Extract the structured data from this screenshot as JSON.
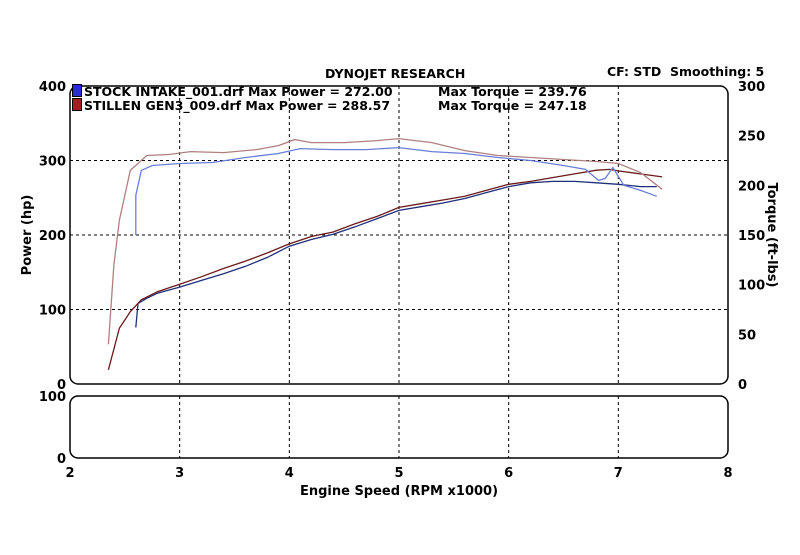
{
  "header": {
    "title": "DYNOJET RESEARCH",
    "settings": "CF: STD  Smoothing: 5"
  },
  "legend": [
    {
      "file": "STOCK INTAKE_001.drf",
      "max_power": "Max Power = 272.00",
      "max_torque": "Max Torque = 239.76",
      "color": "#2b2bd6"
    },
    {
      "file": "STILLEN GEN3_009.drf",
      "max_power": "Max Power = 288.57",
      "max_torque": "Max Torque = 247.18",
      "color": "#8b1a1a"
    }
  ],
  "chart_data": [
    {
      "type": "line",
      "xlabel": "Engine Speed (RPM x1000)",
      "ylabel": "Power (hp)",
      "y2label": "Torque (ft-lbs)",
      "xlim": [
        2,
        8
      ],
      "ylim": [
        0,
        400
      ],
      "y2lim": [
        0,
        300
      ],
      "xticks": [
        "2",
        "3",
        "4",
        "5",
        "6",
        "7",
        "8"
      ],
      "yticks": [
        "0",
        "100",
        "200",
        "300",
        "400"
      ],
      "y2ticks": [
        "0",
        "50",
        "100",
        "150",
        "200",
        "250",
        "300"
      ],
      "grid": true,
      "series": [
        {
          "name": "STOCK INTAKE_001.drf",
          "measure": "Power (hp)",
          "axis": "left",
          "color": "#1f2f7a",
          "x": [
            2.6,
            2.62,
            2.7,
            2.8,
            3.0,
            3.2,
            3.4,
            3.6,
            3.8,
            4.0,
            4.2,
            4.4,
            4.6,
            4.8,
            5.0,
            5.2,
            5.4,
            5.6,
            5.8,
            6.0,
            6.2,
            6.4,
            6.6,
            6.8,
            7.0,
            7.2,
            7.35
          ],
          "y": [
            76,
            108,
            115,
            122,
            130,
            139,
            148,
            158,
            170,
            185,
            194,
            201,
            211,
            222,
            233,
            238,
            243,
            249,
            257,
            265,
            270,
            272,
            272,
            270,
            268,
            265,
            265
          ]
        },
        {
          "name": "STILLEN GEN3_009.drf",
          "measure": "Power (hp)",
          "axis": "left",
          "color": "#6b1a1a",
          "x": [
            2.35,
            2.45,
            2.55,
            2.65,
            2.8,
            3.0,
            3.2,
            3.4,
            3.6,
            3.8,
            4.0,
            4.2,
            4.4,
            4.6,
            4.8,
            5.0,
            5.2,
            5.4,
            5.6,
            5.8,
            6.0,
            6.2,
            6.4,
            6.6,
            6.8,
            6.92,
            7.0,
            7.2,
            7.4
          ],
          "y": [
            19,
            75,
            97,
            113,
            124,
            134,
            144,
            155,
            165,
            176,
            188,
            198,
            204,
            215,
            225,
            237,
            242,
            247,
            252,
            260,
            268,
            272,
            277,
            282,
            287,
            288,
            286,
            282,
            278
          ]
        },
        {
          "name": "STOCK INTAKE_001.drf",
          "measure": "Torque (ft-lbs)",
          "axis": "right",
          "color": "#6a7ed8",
          "x": [
            2.6,
            2.6,
            2.65,
            2.75,
            3.0,
            3.3,
            3.6,
            3.9,
            4.1,
            4.4,
            4.7,
            5.0,
            5.3,
            5.6,
            5.9,
            6.2,
            6.5,
            6.7,
            6.82,
            6.88,
            6.95,
            7.05,
            7.2,
            7.35
          ],
          "y": [
            150,
            190,
            215,
            220,
            222,
            223,
            228,
            232,
            237,
            236,
            236,
            238,
            234,
            232,
            228,
            225,
            220,
            216,
            205,
            207,
            218,
            200,
            195,
            189
          ]
        },
        {
          "name": "STILLEN GEN3_009.drf",
          "measure": "Torque (ft-lbs)",
          "axis": "right",
          "color": "#b08080",
          "x": [
            2.35,
            2.4,
            2.45,
            2.55,
            2.7,
            2.9,
            3.1,
            3.4,
            3.7,
            3.9,
            4.05,
            4.2,
            4.5,
            4.8,
            5.0,
            5.3,
            5.6,
            5.9,
            6.2,
            6.5,
            6.8,
            7.0,
            7.2,
            7.4
          ],
          "y": [
            40,
            120,
            165,
            215,
            230,
            231,
            234,
            233,
            236,
            240,
            246,
            243,
            243,
            245,
            247,
            243,
            235,
            230,
            228,
            226,
            224,
            222,
            213,
            196
          ]
        }
      ]
    },
    {
      "type": "line",
      "ylim": [
        0,
        100
      ],
      "yticks": [
        "0",
        "100"
      ],
      "grid": true,
      "series": []
    }
  ]
}
